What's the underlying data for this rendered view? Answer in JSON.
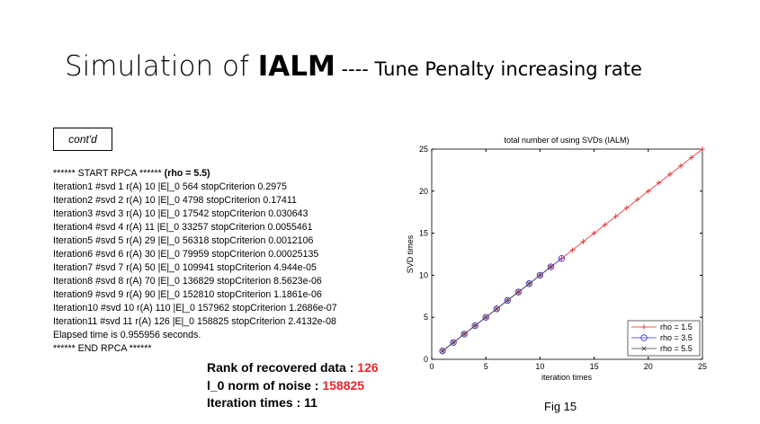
{
  "slide": {
    "title_main": "Simulation of ",
    "title_bold": "IALM",
    "title_sub": " ---- Tune Penalty increasing rate",
    "contd": "cont'd",
    "log_header": "****** START RPCA ******",
    "log_header_bold": " (rho = 5.5)",
    "log_lines": [
      "Iteration1 #svd 1 r(A) 10 |E|_0 564 stopCriterion 0.2975",
      "Iteration2 #svd 2 r(A) 10 |E|_0 4798 stopCriterion 0.17411",
      "Iteration3 #svd 3 r(A) 10 |E|_0 17542 stopCriterion 0.030643",
      "Iteration4 #svd 4 r(A) 11 |E|_0 33257 stopCriterion 0.0055461",
      "Iteration5 #svd 5 r(A) 29 |E|_0 56318 stopCriterion 0.0012106",
      "Iteration6 #svd 6 r(A) 30 |E|_0 79959 stopCriterion 0.00025135",
      "Iteration7 #svd 7 r(A) 50 |E|_0 109941 stopCriterion 4.944e-05",
      "Iteration8 #svd 8 r(A) 70 |E|_0 136829 stopCriterion 8.5623e-06",
      "Iteration9 #svd 9 r(A) 90 |E|_0 152810 stopCriterion 1.1861e-06",
      "Iteration10 #svd 10 r(A) 110 |E|_0 157962 stopCriterion 1.2686e-07",
      "Iteration11 #svd 11 r(A) 126 |E|_0 158825 stopCriterion 2.4132e-08",
      "Elapsed time is 0.955956 seconds.",
      "****** END RPCA ******"
    ],
    "rank_label": "Rank of recovered data : ",
    "rank_value": "126",
    "noise_label": "l_0 norm of noise : ",
    "noise_value": "158825",
    "iter_label": "Iteration times : ",
    "iter_value": "11",
    "fig_caption": "Fig 15",
    "highlight_color": "#e8262a"
  },
  "chart_data": {
    "type": "line",
    "title": "total number of using SVDs (IALM)",
    "xlabel": "iteration times",
    "ylabel": "SVD times",
    "xlim": [
      0,
      25
    ],
    "ylim": [
      0,
      25
    ],
    "xticks": [
      0,
      5,
      10,
      15,
      20,
      25
    ],
    "yticks": [
      0,
      5,
      10,
      15,
      20,
      25
    ],
    "grid": false,
    "legend": "bottom-right",
    "series": [
      {
        "name": "rho = 1.5",
        "color": "#e8262a",
        "marker": "plus",
        "x": [
          1,
          2,
          3,
          4,
          5,
          6,
          7,
          8,
          9,
          10,
          11,
          12,
          13,
          14,
          15,
          16,
          17,
          18,
          19,
          20,
          21,
          22,
          23,
          24,
          25
        ],
        "y": [
          1,
          2,
          3,
          4,
          5,
          6,
          7,
          8,
          9,
          10,
          11,
          12,
          13,
          14,
          15,
          16,
          17,
          18,
          19,
          20,
          21,
          22,
          23,
          24,
          25
        ]
      },
      {
        "name": "rho = 3.5",
        "color": "#3030e0",
        "marker": "circle",
        "x": [
          1,
          2,
          3,
          4,
          5,
          6,
          7,
          8,
          9,
          10,
          11,
          12
        ],
        "y": [
          1,
          2,
          3,
          4,
          5,
          6,
          7,
          8,
          9,
          10,
          11,
          12
        ]
      },
      {
        "name": "rho = 5.5",
        "color": "#444444",
        "marker": "x",
        "x": [
          1,
          2,
          3,
          4,
          5,
          6,
          7,
          8,
          9,
          10,
          11
        ],
        "y": [
          1,
          2,
          3,
          4,
          5,
          6,
          7,
          8,
          9,
          10,
          11
        ]
      }
    ]
  }
}
